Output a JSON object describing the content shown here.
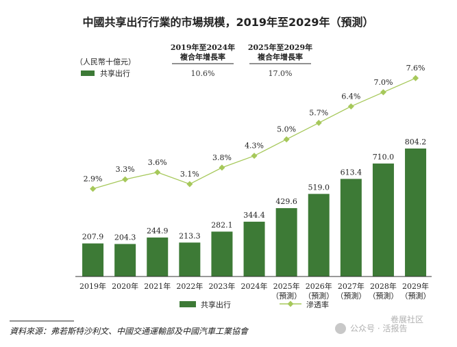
{
  "chart_data": {
    "type": "bar",
    "title": "中國共享出行行業的市場規模，2019年至2029年（預測）",
    "unit_label": "（人民幣十億元）",
    "categories": [
      "2019年",
      "2020年",
      "2021年",
      "2022年",
      "2023年",
      "2024年",
      "2025年",
      "2026年",
      "2027年",
      "2028年",
      "2029年"
    ],
    "category_sublabels": [
      "",
      "",
      "",
      "",
      "",
      "",
      "（預測）",
      "（預測）",
      "（預測）",
      "（預測）",
      "（預測）"
    ],
    "series": [
      {
        "name": "共享出行",
        "type": "bar",
        "color": "#3d7a36",
        "values": [
          207.9,
          204.3,
          244.9,
          213.3,
          282.1,
          344.4,
          429.6,
          519.0,
          613.4,
          710.0,
          804.2
        ],
        "labels": [
          "207.9",
          "204.3",
          "244.9",
          "213.3",
          "282.1",
          "344.4",
          "429.6",
          "519.0",
          "613.4",
          "710.0",
          "804.2"
        ]
      },
      {
        "name": "滲透率",
        "type": "line",
        "color": "#a6c85a",
        "values": [
          2.9,
          3.3,
          3.6,
          3.1,
          3.8,
          4.3,
          5.0,
          5.7,
          6.4,
          7.0,
          7.6
        ],
        "labels": [
          "2.9%",
          "3.3%",
          "3.6%",
          "3.1%",
          "3.8%",
          "4.3%",
          "5.0%",
          "5.7%",
          "6.4%",
          "7.0%",
          "7.6%"
        ]
      }
    ],
    "cagr": [
      {
        "header_line1": "2019年至2024年",
        "header_line2": "複合年增長率",
        "series_label": "共享出行",
        "value": "10.6%"
      },
      {
        "header_line1": "2025年至2029年",
        "header_line2": "複合年增長率",
        "value": "17.0%"
      }
    ],
    "legend": [
      {
        "label": "共享出行",
        "kind": "bar"
      },
      {
        "label": "滲透率",
        "kind": "line"
      }
    ],
    "legend_position": "bottom",
    "source_note": "資料來源：弗若斯特沙利文、中國交通運輸部及中國汽車工業協會",
    "watermark": "公众号 · 活报告",
    "watermark2": "卷展社区"
  }
}
